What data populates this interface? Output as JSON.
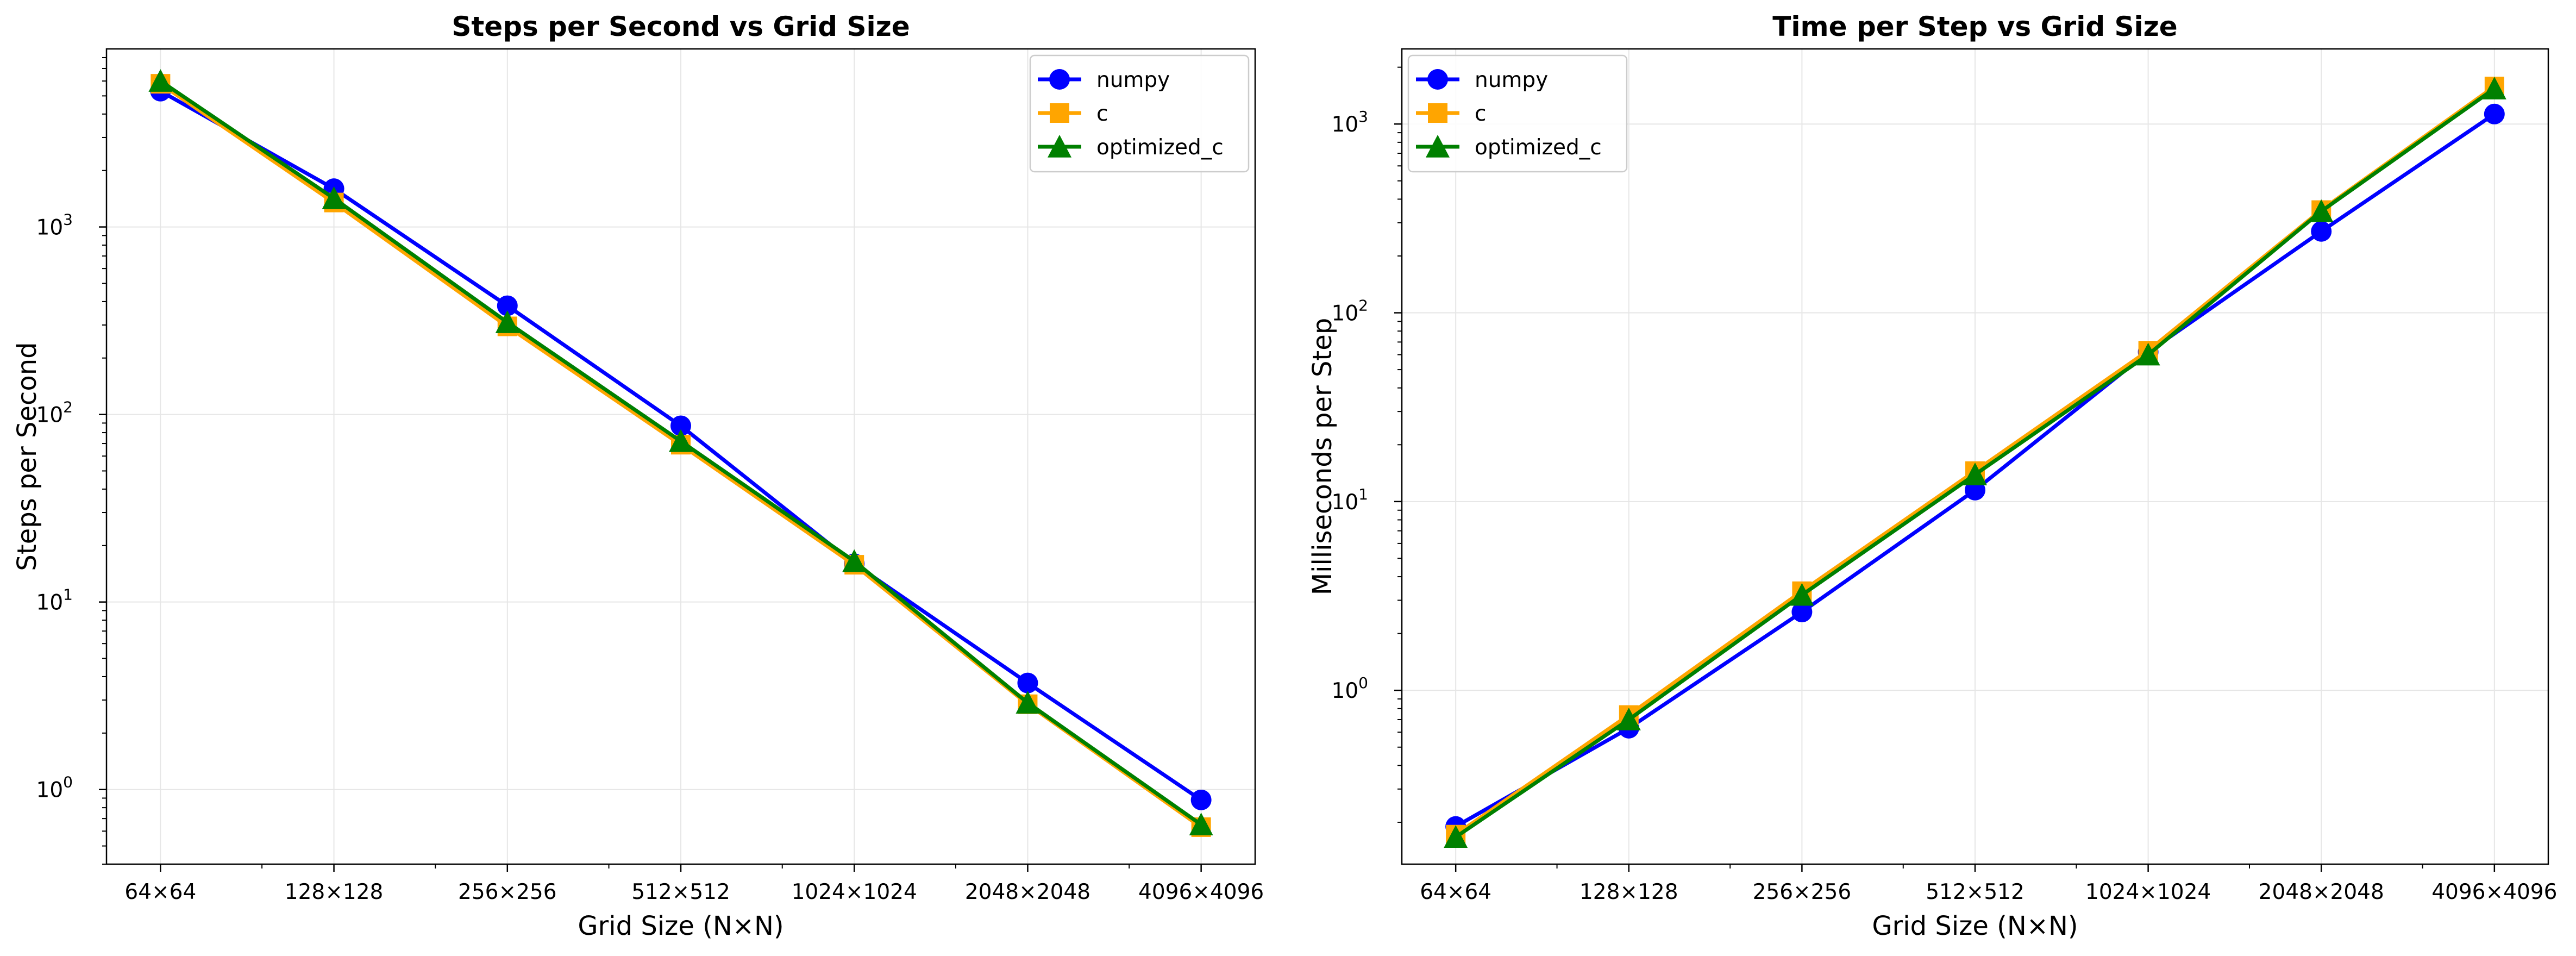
{
  "colors": {
    "numpy": "#0000ff",
    "c": "#ffa500",
    "optimized_c": "#008000",
    "grid": "#e6e6e6",
    "axes": "#000000"
  },
  "chart_data": [
    {
      "type": "line",
      "title": "Steps per Second vs Grid Size",
      "xlabel": "Grid Size (N×N)",
      "ylabel": "Steps per Second",
      "y_scale": "log",
      "ylim": [
        0.4,
        8900
      ],
      "grid": true,
      "legend_position": "top-right",
      "categories": [
        "64×64",
        "128×128",
        "256×256",
        "512×512",
        "1024×1024",
        "2048×2048",
        "4096×4096"
      ],
      "y_ticks": [
        {
          "base": "10",
          "exp": "0",
          "value": 1
        },
        {
          "base": "10",
          "exp": "1",
          "value": 10
        },
        {
          "base": "10",
          "exp": "2",
          "value": 100
        },
        {
          "base": "10",
          "exp": "3",
          "value": 1000
        }
      ],
      "series": [
        {
          "name": "numpy",
          "marker": "circle",
          "values": [
            5300,
            1600,
            380,
            87,
            16,
            3.7,
            0.88
          ]
        },
        {
          "name": "c",
          "marker": "square",
          "values": [
            5800,
            1350,
            295,
            69,
            15.8,
            2.85,
            0.63
          ]
        },
        {
          "name": "optimized_c",
          "marker": "triangle",
          "values": [
            6000,
            1420,
            310,
            72,
            16.5,
            2.9,
            0.65
          ]
        }
      ]
    },
    {
      "type": "line",
      "title": "Time per Step vs Grid Size",
      "xlabel": "Grid Size (N×N)",
      "ylabel": "Milliseconds per Step",
      "y_scale": "log",
      "ylim": [
        0.12,
        2500
      ],
      "grid": true,
      "legend_position": "top-left",
      "categories": [
        "64×64",
        "128×128",
        "256×256",
        "512×512",
        "1024×1024",
        "2048×2048",
        "4096×4096"
      ],
      "y_ticks": [
        {
          "base": "10",
          "exp": "0",
          "value": 1
        },
        {
          "base": "10",
          "exp": "1",
          "value": 10
        },
        {
          "base": "10",
          "exp": "2",
          "value": 100
        },
        {
          "base": "10",
          "exp": "3",
          "value": 1000
        }
      ],
      "series": [
        {
          "name": "numpy",
          "marker": "circle",
          "values": [
            0.19,
            0.63,
            2.6,
            11.5,
            62,
            270,
            1130
          ]
        },
        {
          "name": "c",
          "marker": "square",
          "values": [
            0.172,
            0.74,
            3.35,
            14.5,
            63,
            350,
            1580
          ]
        },
        {
          "name": "optimized_c",
          "marker": "triangle",
          "values": [
            0.167,
            0.7,
            3.2,
            13.9,
            60,
            345,
            1540
          ]
        }
      ]
    }
  ]
}
